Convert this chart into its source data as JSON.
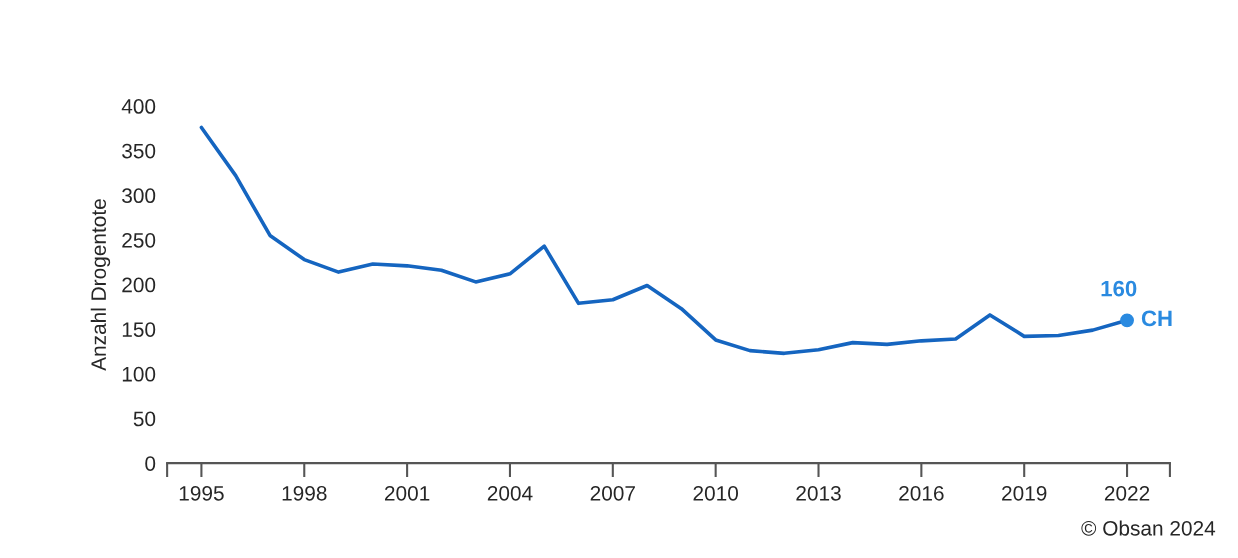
{
  "chart_data": {
    "type": "line",
    "ylabel": "Anzahl Drogentote",
    "x": [
      1995,
      1996,
      1997,
      1998,
      1999,
      2000,
      2001,
      2002,
      2003,
      2004,
      2005,
      2006,
      2007,
      2008,
      2009,
      2010,
      2011,
      2012,
      2013,
      2014,
      2015,
      2016,
      2017,
      2018,
      2019,
      2020,
      2021,
      2022
    ],
    "series": [
      {
        "color": "#1565c0",
        "values": [
          376,
          322,
          255,
          228,
          214,
          223,
          221,
          216,
          203,
          212,
          243,
          179,
          183,
          199,
          173,
          138,
          126,
          123,
          127,
          135,
          133,
          137,
          139,
          166,
          142,
          143,
          149,
          160
        ]
      },
      {
        "type": "scatter",
        "name": "CH",
        "color": "#2a8ae0",
        "x": [
          2022
        ],
        "values": [
          160
        ],
        "value_labels": [
          "160"
        ],
        "marker": "circle"
      }
    ],
    "xlim": [
      1994,
      2023.25
    ],
    "xticks": [
      {
        "value": 1994,
        "label": null
      },
      1995,
      1998,
      2001,
      2004,
      2007,
      2010,
      2013,
      2016,
      2019,
      2022,
      {
        "value": 2023.25,
        "label": null
      }
    ],
    "ylim": [
      0,
      400
    ],
    "yticks": [
      0,
      50,
      100,
      150,
      200,
      250,
      300,
      350,
      400
    ],
    "grid": false,
    "legend": false,
    "marker": "none",
    "line_style": "solid",
    "annotations": [
      "© Obsan 2024"
    ]
  }
}
